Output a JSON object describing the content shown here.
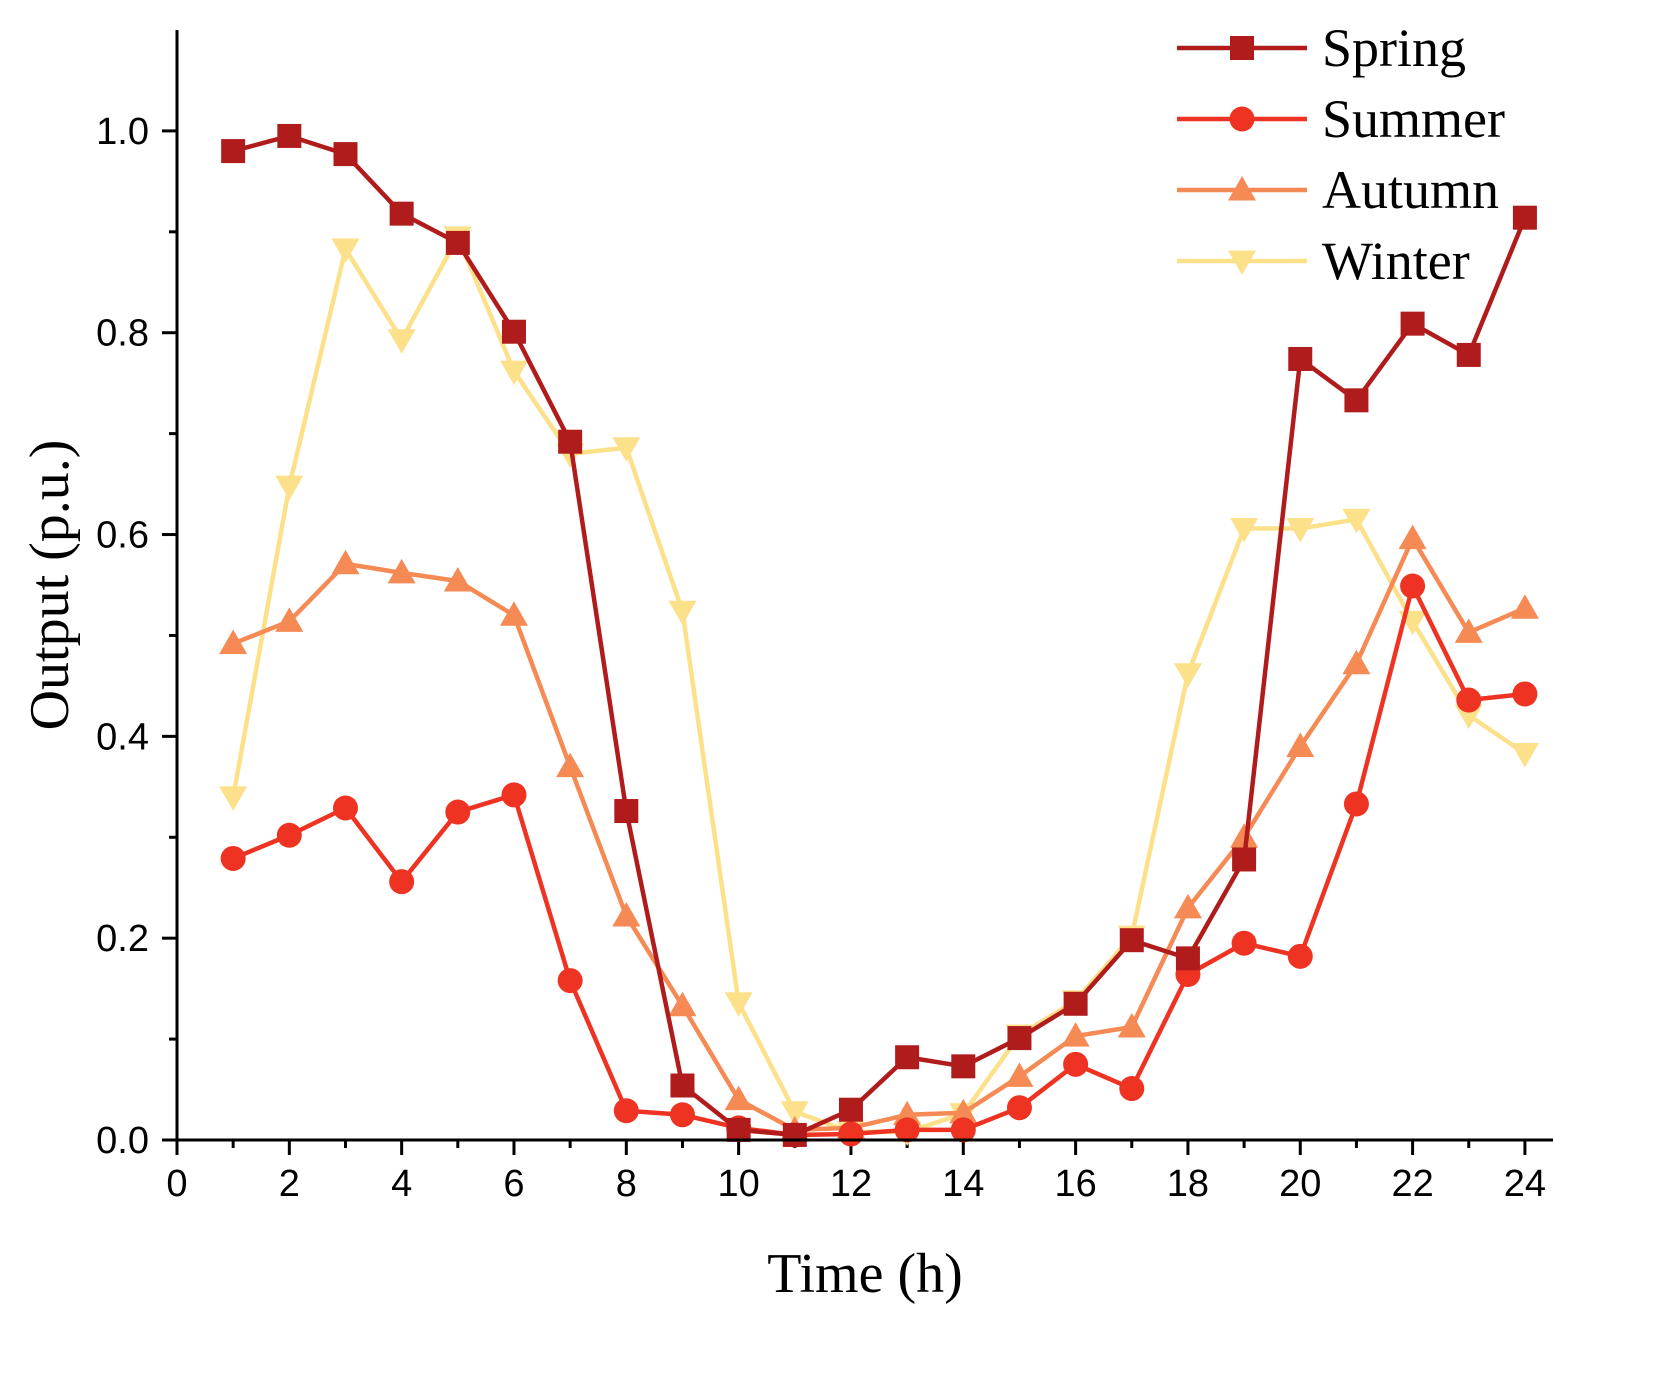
{
  "chart_data": {
    "type": "line",
    "title": "",
    "xlabel": "Time (h)",
    "ylabel": "Output (p.u.)",
    "xlim": [
      0,
      24.5
    ],
    "ylim": [
      0,
      1.1
    ],
    "xticks": [
      0,
      2,
      4,
      6,
      8,
      10,
      12,
      14,
      16,
      18,
      20,
      22,
      24
    ],
    "yticks": [
      0.0,
      0.2,
      0.4,
      0.6,
      0.8,
      1.0
    ],
    "xtick_labels": [
      "0",
      "2",
      "4",
      "6",
      "8",
      "10",
      "12",
      "14",
      "16",
      "18",
      "20",
      "22",
      "24"
    ],
    "ytick_labels": [
      "0.0",
      "0.2",
      "0.4",
      "0.6",
      "0.8",
      "1.0"
    ],
    "grid": false,
    "legend_position": "top-right",
    "x": [
      1,
      2,
      3,
      4,
      5,
      6,
      7,
      8,
      9,
      10,
      11,
      12,
      13,
      14,
      15,
      16,
      17,
      18,
      19,
      20,
      21,
      22,
      23,
      24
    ],
    "series": [
      {
        "name": "Spring",
        "color": "#b01c1c",
        "marker": "square",
        "values": [
          0.98,
          0.995,
          0.977,
          0.918,
          0.889,
          0.801,
          0.692,
          0.326,
          0.054,
          0.01,
          0.005,
          0.03,
          0.082,
          0.073,
          0.101,
          0.135,
          0.198,
          0.18,
          0.278,
          0.774,
          0.733,
          0.809,
          0.778,
          0.914
        ]
      },
      {
        "name": "Summer",
        "color": "#ee3322",
        "marker": "circle",
        "values": [
          0.279,
          0.302,
          0.329,
          0.256,
          0.325,
          0.342,
          0.158,
          0.029,
          0.025,
          0.012,
          0.005,
          0.006,
          0.01,
          0.01,
          0.032,
          0.075,
          0.051,
          0.164,
          0.195,
          0.182,
          0.333,
          0.549,
          0.436,
          0.442
        ]
      },
      {
        "name": "Autumn",
        "color": "#f58a55",
        "marker": "triangle-up",
        "values": [
          0.492,
          0.514,
          0.571,
          0.562,
          0.554,
          0.52,
          0.37,
          0.222,
          0.133,
          0.04,
          0.01,
          0.012,
          0.025,
          0.027,
          0.063,
          0.103,
          0.112,
          0.23,
          0.3,
          0.39,
          0.472,
          0.596,
          0.503,
          0.527
        ]
      },
      {
        "name": "Winter",
        "color": "#fce08a",
        "marker": "triangle-down",
        "values": [
          0.34,
          0.648,
          0.883,
          0.793,
          0.895,
          0.762,
          0.68,
          0.686,
          0.524,
          0.136,
          0.028,
          0.008,
          0.008,
          0.026,
          0.104,
          0.138,
          0.202,
          0.462,
          0.606,
          0.606,
          0.615,
          0.514,
          0.421,
          0.383
        ]
      }
    ]
  }
}
